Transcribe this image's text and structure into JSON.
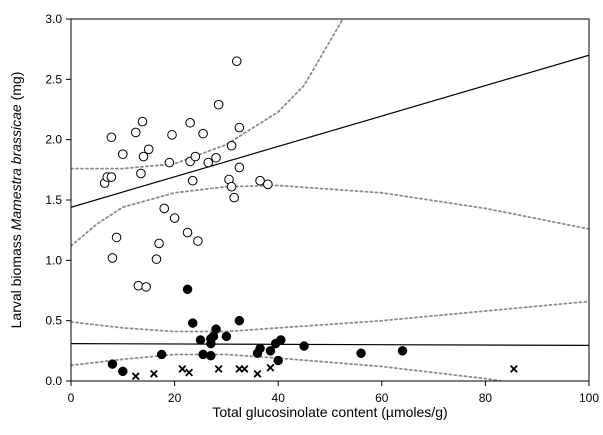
{
  "chart_data": {
    "type": "scatter",
    "xlabel": "Total glucosinolate content (µmoles/g)",
    "ylabel_parts": [
      "Larval biomass ",
      "Mamestra brassicae",
      " (mg)"
    ],
    "xlim": [
      0,
      100
    ],
    "ylim": [
      0,
      3.0
    ],
    "x_ticks": [
      0,
      20,
      40,
      60,
      80,
      100
    ],
    "x_tick_labels": [
      "0",
      "20",
      "40",
      "60",
      "80",
      "100"
    ],
    "y_ticks": [
      0,
      0.5,
      1.0,
      1.5,
      2.0,
      2.5,
      3.0
    ],
    "y_tick_labels": [
      "0.0",
      "0.5",
      "1.0",
      "1.5",
      "2.0",
      "2.5",
      "3.0"
    ],
    "grid": false,
    "series": [
      {
        "marker": "open-circle",
        "points": [
          [
            6.5,
            1.64
          ],
          [
            7.0,
            1.69
          ],
          [
            7.8,
            1.69
          ],
          [
            7.8,
            2.02
          ],
          [
            8.0,
            1.02
          ],
          [
            8.8,
            1.19
          ],
          [
            10.0,
            1.88
          ],
          [
            12.5,
            2.06
          ],
          [
            13.0,
            0.79
          ],
          [
            13.5,
            1.72
          ],
          [
            13.8,
            2.15
          ],
          [
            14.0,
            1.86
          ],
          [
            14.5,
            0.78
          ],
          [
            15.0,
            1.92
          ],
          [
            16.5,
            1.01
          ],
          [
            17.0,
            1.14
          ],
          [
            18.0,
            1.43
          ],
          [
            19.0,
            1.81
          ],
          [
            19.5,
            2.04
          ],
          [
            20.0,
            1.35
          ],
          [
            22.5,
            1.23
          ],
          [
            23.0,
            2.14
          ],
          [
            23.0,
            1.82
          ],
          [
            23.5,
            1.66
          ],
          [
            24.0,
            1.86
          ],
          [
            24.5,
            1.16
          ],
          [
            25.5,
            2.05
          ],
          [
            26.5,
            1.81
          ],
          [
            28.0,
            1.85
          ],
          [
            28.5,
            2.29
          ],
          [
            30.5,
            1.67
          ],
          [
            31.0,
            1.61
          ],
          [
            31.0,
            1.95
          ],
          [
            31.5,
            1.52
          ],
          [
            32.0,
            2.65
          ],
          [
            32.5,
            2.1
          ],
          [
            32.5,
            1.77
          ],
          [
            36.5,
            1.66
          ],
          [
            38.0,
            1.63
          ]
        ]
      },
      {
        "marker": "filled-circle",
        "points": [
          [
            8.0,
            0.14
          ],
          [
            10.0,
            0.08
          ],
          [
            17.5,
            0.22
          ],
          [
            22.5,
            0.76
          ],
          [
            23.5,
            0.48
          ],
          [
            25.0,
            0.34
          ],
          [
            25.5,
            0.22
          ],
          [
            27.0,
            0.21
          ],
          [
            27.0,
            0.31
          ],
          [
            27.0,
            0.35
          ],
          [
            27.5,
            0.37
          ],
          [
            28.0,
            0.43
          ],
          [
            30.0,
            0.37
          ],
          [
            32.5,
            0.5
          ],
          [
            36.0,
            0.23
          ],
          [
            36.5,
            0.27
          ],
          [
            38.5,
            0.25
          ],
          [
            39.5,
            0.31
          ],
          [
            40.0,
            0.17
          ],
          [
            40.5,
            0.34
          ],
          [
            45.0,
            0.29
          ],
          [
            56.0,
            0.23
          ],
          [
            64.0,
            0.25
          ]
        ]
      },
      {
        "marker": "cross",
        "points": [
          [
            12.5,
            0.04
          ],
          [
            16.0,
            0.06
          ],
          [
            21.5,
            0.1
          ],
          [
            22.8,
            0.07
          ],
          [
            28.5,
            0.1
          ],
          [
            32.5,
            0.1
          ],
          [
            33.5,
            0.1
          ],
          [
            36.0,
            0.06
          ],
          [
            38.5,
            0.11
          ],
          [
            85.5,
            0.1
          ]
        ]
      }
    ],
    "fits": [
      {
        "intercept": 1.44,
        "slope": 0.0126,
        "ci_upper": [
          [
            0,
            1.76
          ],
          [
            10,
            1.76
          ],
          [
            20,
            1.8
          ],
          [
            30,
            1.96
          ],
          [
            40,
            2.23
          ],
          [
            45,
            2.45
          ],
          [
            52.5,
            3.0
          ]
        ],
        "ci_lower": [
          [
            0,
            1.12
          ],
          [
            5,
            1.3
          ],
          [
            10,
            1.44
          ],
          [
            20,
            1.56
          ],
          [
            30,
            1.61
          ],
          [
            40,
            1.62
          ],
          [
            60,
            1.56
          ],
          [
            80,
            1.43
          ],
          [
            100,
            1.26
          ]
        ]
      },
      {
        "intercept": 0.31,
        "slope": -0.00015,
        "ci_upper": [
          [
            0,
            0.49
          ],
          [
            10,
            0.44
          ],
          [
            20,
            0.41
          ],
          [
            30,
            0.41
          ],
          [
            40,
            0.44
          ],
          [
            60,
            0.5
          ],
          [
            80,
            0.58
          ],
          [
            100,
            0.66
          ]
        ],
        "ci_lower": [
          [
            0,
            0.13
          ],
          [
            10,
            0.18
          ],
          [
            20,
            0.22
          ],
          [
            30,
            0.22
          ],
          [
            40,
            0.19
          ],
          [
            60,
            0.12
          ],
          [
            80,
            0.02
          ],
          [
            83,
            0.0
          ]
        ]
      }
    ]
  }
}
